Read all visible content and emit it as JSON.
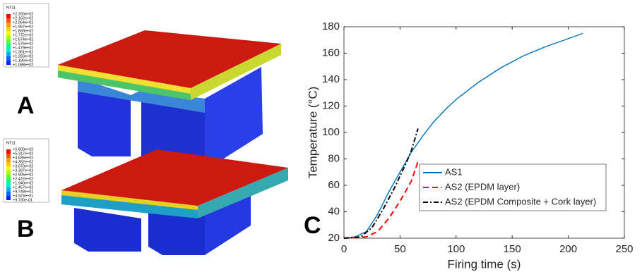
{
  "panel_labels": [
    "A",
    "B",
    "C"
  ],
  "contour_legends": [
    {
      "title": "NT11",
      "labels": [
        "+2.260e+02",
        "+2.162e+02",
        "+2.064e+02",
        "+1.967e+02",
        "+1.869e+02",
        "+1.772e+02",
        "+1.674e+02",
        "+1.576e+02",
        "+1.479e+02",
        "+1.381e+02",
        "+1.283e+02",
        "+1.186e+02",
        "+1.088e+02"
      ]
    },
    {
      "title": "NT11",
      "labels": [
        "+5.800e+02",
        "+5.317e+02",
        "+4.835e+02",
        "+4.352e+02",
        "+3.870e+02",
        "+3.387e+02",
        "+2.905e+02",
        "+2.422e+02",
        "+1.940e+02",
        "+1.457e+02",
        "+9.748e+01",
        "+4.923e+01",
        "+9.730e-01"
      ]
    }
  ],
  "chart_data": {
    "type": "line",
    "xlabel": "Firing time (s)",
    "ylabel": "Temperature (°C)",
    "xlim": [
      0,
      250
    ],
    "xticks": [
      0,
      50,
      100,
      150,
      200,
      250
    ],
    "ylim": [
      20,
      180
    ],
    "yticks": [
      20,
      40,
      60,
      80,
      100,
      120,
      140,
      160,
      180
    ],
    "legend": "lower right",
    "series": [
      {
        "name": "AS1",
        "color": "#0072bd",
        "linestyle": "solid",
        "x": [
          0,
          10,
          20,
          30,
          40,
          50,
          60,
          70,
          80,
          90,
          100,
          120,
          140,
          160,
          180,
          200,
          213
        ],
        "values": [
          20,
          21,
          25,
          38,
          55,
          70,
          85,
          97,
          108,
          117,
          125,
          138,
          149,
          158,
          165,
          171,
          175
        ]
      },
      {
        "name": "AS2 (EPDM layer)",
        "color": "#ff0000",
        "linestyle": "dashed",
        "x": [
          0,
          20,
          30,
          40,
          50,
          60,
          66
        ],
        "values": [
          20,
          21,
          25,
          35,
          48,
          63,
          78
        ]
      },
      {
        "name": "AS2 (EPDM Composite + Cork layer)",
        "color": "#000000",
        "linestyle": "dashdot",
        "x": [
          0,
          15,
          25,
          35,
          45,
          55,
          60,
          66
        ],
        "values": [
          20,
          21,
          28,
          42,
          58,
          76,
          86,
          103
        ]
      }
    ]
  }
}
